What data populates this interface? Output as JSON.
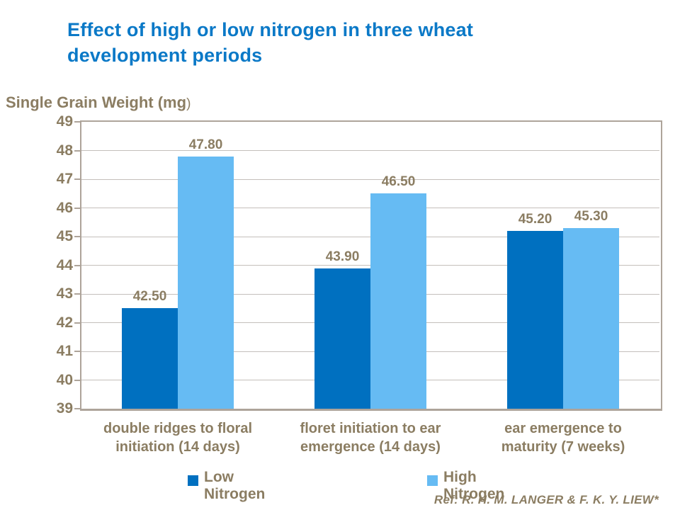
{
  "title": "Effect of high or low nitrogen in three wheat\ndevelopment periods",
  "y_axis_title": {
    "main": "Single Grain Weight (mg",
    "suffix": ")"
  },
  "chart_data": {
    "type": "bar",
    "categories": [
      "double ridges to floral\ninitiation (14 days)",
      "floret initiation to ear\nemergence (14 days)",
      "ear emergence to\nmaturity (7 weeks)"
    ],
    "series": [
      {
        "name": "Low Nitrogen",
        "values": [
          42.5,
          43.9,
          45.2
        ],
        "labels": [
          "42.50",
          "43.90",
          "45.20"
        ],
        "color": "#0070C0"
      },
      {
        "name": "High Nitrogen",
        "values": [
          47.8,
          46.5,
          45.3
        ],
        "labels": [
          "47.80",
          "46.50",
          "45.30"
        ],
        "color": "#66BBF3"
      }
    ],
    "ylabel": "Single Grain Weight (mg)",
    "ylim": [
      39,
      49
    ],
    "ytick_step": 1,
    "yticks": [
      39,
      40,
      41,
      42,
      43,
      44,
      45,
      46,
      47,
      48,
      49
    ],
    "grid": true,
    "legend_position": "bottom"
  },
  "footer": {
    "ref": "Ref: R. H. M. LANGER & F. K. Y. LIEW*"
  },
  "colors": {
    "title_blue": "#0B79C7",
    "text_brown": "#8B7D62",
    "grid_gray": "#C4BFBB",
    "frame_tan": "#AEA49A",
    "bar_dark_blue": "#0070C0",
    "bar_light_blue": "#66BBF3",
    "background": "#FFFFFF"
  }
}
